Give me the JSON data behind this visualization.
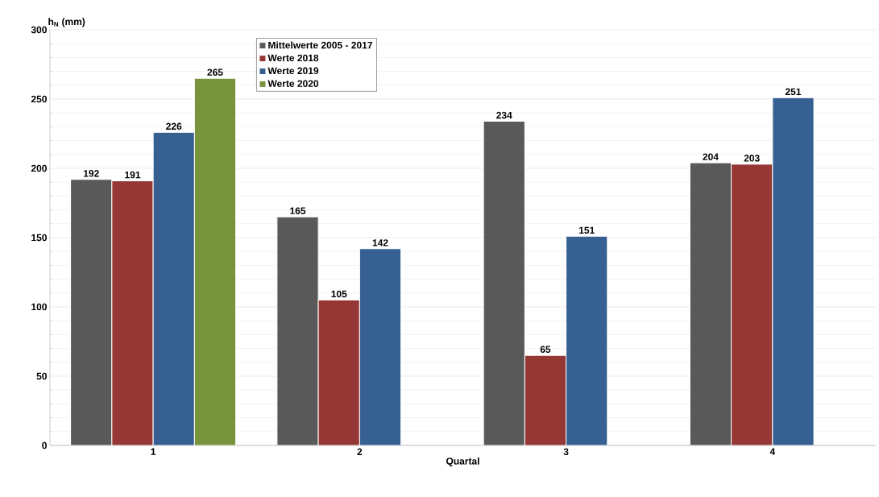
{
  "chart_data": {
    "type": "bar",
    "ylabel": "h$_{N}$ (mm)",
    "xlabel": "Quartal",
    "categories": [
      "1",
      "2",
      "3",
      "4"
    ],
    "series": [
      {
        "name": "Mittelwerte 2005 - 2017",
        "color": "#595959",
        "values": [
          192,
          165,
          234,
          204
        ]
      },
      {
        "name": "Werte 2018",
        "color": "#953735",
        "values": [
          191,
          105,
          65,
          203
        ]
      },
      {
        "name": "Werte 2019",
        "color": "#376092",
        "values": [
          226,
          142,
          151,
          251
        ]
      },
      {
        "name": "Werte 2020",
        "color": "#77933c",
        "values": [
          265,
          null,
          null,
          null
        ]
      }
    ],
    "ylim": [
      0,
      300
    ],
    "yticks": [
      0,
      50,
      100,
      150,
      200,
      250,
      300
    ],
    "grid": "y",
    "legend": "top",
    "data_labels": true
  }
}
